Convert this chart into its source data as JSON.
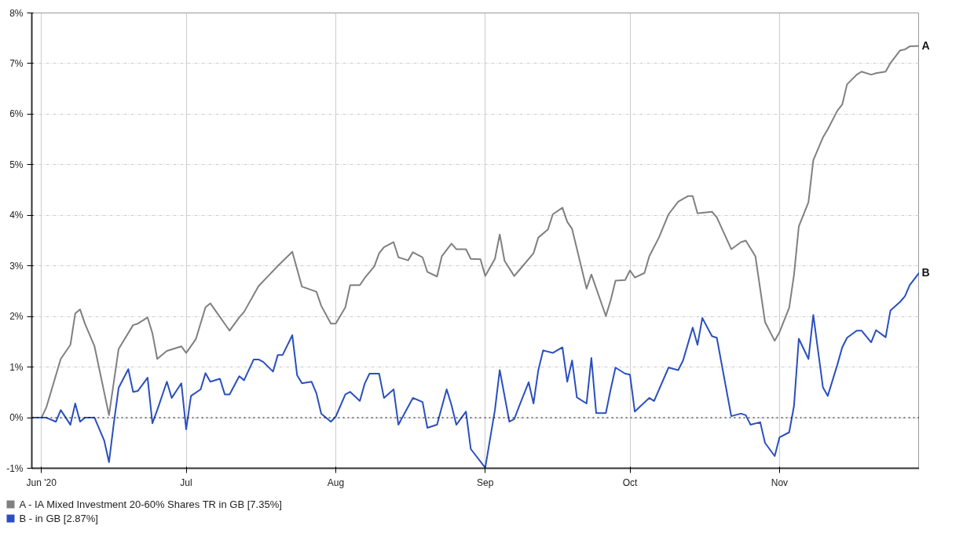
{
  "chart_data": {
    "type": "line",
    "xlim": [
      "2020-05-30",
      "2020-11-30"
    ],
    "xticks": [
      {
        "value": "2020-06-01",
        "label": "Jun '20"
      },
      {
        "value": "2020-07-01",
        "label": "Jul"
      },
      {
        "value": "2020-08-01",
        "label": "Aug"
      },
      {
        "value": "2020-09-01",
        "label": "Sep"
      },
      {
        "value": "2020-10-01",
        "label": "Oct"
      },
      {
        "value": "2020-11-01",
        "label": "Nov"
      }
    ],
    "ylim": [
      -1,
      8
    ],
    "yticks": [
      {
        "value": -1,
        "label": "-1%"
      },
      {
        "value": 0,
        "label": "0%"
      },
      {
        "value": 1,
        "label": "1%"
      },
      {
        "value": 2,
        "label": "2%"
      },
      {
        "value": 3,
        "label": "3%"
      },
      {
        "value": 4,
        "label": "4%"
      },
      {
        "value": 5,
        "label": "5%"
      },
      {
        "value": 6,
        "label": "6%"
      },
      {
        "value": 7,
        "label": "7%"
      },
      {
        "value": 8,
        "label": "8%"
      }
    ],
    "grid": true,
    "legend": "bottom",
    "marker": "none",
    "line_style": "solid",
    "ref_lines": [
      {
        "axis": "y",
        "value": 0,
        "color": "#000000",
        "line_style": "dotted"
      }
    ],
    "annotations": [
      {
        "text": "A",
        "x": "2020-11-30",
        "y": 7.35
      },
      {
        "text": "B",
        "x": "2020-11-30",
        "y": 2.87
      }
    ],
    "series": [
      {
        "name": "A - IA Mixed Investment 20-60% Shares TR in GB [7.35%]",
        "color": "#808080",
        "x": [
          "2020-05-30",
          "2020-06-01",
          "2020-06-02",
          "2020-06-05",
          "2020-06-07",
          "2020-06-08",
          "2020-06-09",
          "2020-06-10",
          "2020-06-12",
          "2020-06-15",
          "2020-06-17",
          "2020-06-20",
          "2020-06-21",
          "2020-06-23",
          "2020-06-24",
          "2020-06-25",
          "2020-06-27",
          "2020-06-30",
          "2020-07-01",
          "2020-07-03",
          "2020-07-05",
          "2020-07-06",
          "2020-07-10",
          "2020-07-12",
          "2020-07-13",
          "2020-07-16",
          "2020-07-18",
          "2020-07-20",
          "2020-07-23",
          "2020-07-25",
          "2020-07-28",
          "2020-07-29",
          "2020-07-31",
          "2020-08-01",
          "2020-08-03",
          "2020-08-04",
          "2020-08-06",
          "2020-08-07",
          "2020-08-09",
          "2020-08-10",
          "2020-08-11",
          "2020-08-13",
          "2020-08-14",
          "2020-08-16",
          "2020-08-17",
          "2020-08-19",
          "2020-08-20",
          "2020-08-22",
          "2020-08-23",
          "2020-08-25",
          "2020-08-26",
          "2020-08-28",
          "2020-08-29",
          "2020-08-31",
          "2020-09-01",
          "2020-09-03",
          "2020-09-04",
          "2020-09-05",
          "2020-09-07",
          "2020-09-08",
          "2020-09-11",
          "2020-09-12",
          "2020-09-14",
          "2020-09-15",
          "2020-09-17",
          "2020-09-18",
          "2020-09-19",
          "2020-09-22",
          "2020-09-23",
          "2020-09-26",
          "2020-09-27",
          "2020-09-28",
          "2020-09-30",
          "2020-10-01",
          "2020-10-02",
          "2020-10-04",
          "2020-10-05",
          "2020-10-07",
          "2020-10-09",
          "2020-10-11",
          "2020-10-13",
          "2020-10-14",
          "2020-10-15",
          "2020-10-18",
          "2020-10-19",
          "2020-10-22",
          "2020-10-24",
          "2020-10-25",
          "2020-10-27",
          "2020-10-29",
          "2020-10-31",
          "2020-11-01",
          "2020-11-03",
          "2020-11-04",
          "2020-11-05",
          "2020-11-07",
          "2020-11-08",
          "2020-11-10",
          "2020-11-11",
          "2020-11-13",
          "2020-11-14",
          "2020-11-15",
          "2020-11-17",
          "2020-11-18",
          "2020-11-20",
          "2020-11-21",
          "2020-11-23",
          "2020-11-24",
          "2020-11-26",
          "2020-11-27",
          "2020-11-28",
          "2020-11-30"
        ],
        "values": [
          0,
          0,
          0.2,
          1.16,
          1.44,
          2.06,
          2.14,
          1.86,
          1.41,
          0.05,
          1.36,
          1.83,
          1.86,
          1.98,
          1.67,
          1.16,
          1.32,
          1.41,
          1.28,
          1.55,
          2.18,
          2.26,
          1.72,
          1.98,
          2.09,
          2.6,
          2.8,
          3.0,
          3.28,
          2.59,
          2.49,
          2.21,
          1.86,
          1.86,
          2.18,
          2.62,
          2.62,
          2.76,
          2.99,
          3.25,
          3.37,
          3.47,
          3.17,
          3.11,
          3.27,
          3.17,
          2.88,
          2.79,
          3.19,
          3.44,
          3.33,
          3.33,
          3.14,
          3.13,
          2.8,
          3.14,
          3.62,
          3.1,
          2.8,
          2.91,
          3.25,
          3.56,
          3.72,
          4.02,
          4.15,
          3.87,
          3.73,
          2.55,
          2.83,
          2.01,
          2.32,
          2.71,
          2.72,
          2.91,
          2.77,
          2.86,
          3.19,
          3.56,
          4.02,
          4.27,
          4.38,
          4.38,
          4.04,
          4.07,
          3.96,
          3.33,
          3.47,
          3.5,
          3.19,
          1.89,
          1.52,
          1.69,
          2.17,
          2.82,
          3.78,
          4.26,
          5.09,
          5.54,
          5.7,
          6.07,
          6.19,
          6.59,
          6.78,
          6.84,
          6.78,
          6.81,
          6.84,
          7.01,
          7.26,
          7.28,
          7.34,
          7.35
        ]
      },
      {
        "name": "B - in GB [2.87%]",
        "color": "#2a4fbf",
        "x": [
          "2020-05-30",
          "2020-06-02",
          "2020-06-04",
          "2020-06-05",
          "2020-06-07",
          "2020-06-08",
          "2020-06-09",
          "2020-06-10",
          "2020-06-12",
          "2020-06-14",
          "2020-06-15",
          "2020-06-16",
          "2020-06-17",
          "2020-06-19",
          "2020-06-20",
          "2020-06-21",
          "2020-06-23",
          "2020-06-24",
          "2020-06-25",
          "2020-06-27",
          "2020-06-28",
          "2020-06-30",
          "2020-07-01",
          "2020-07-02",
          "2020-07-04",
          "2020-07-05",
          "2020-07-06",
          "2020-07-08",
          "2020-07-09",
          "2020-07-10",
          "2020-07-12",
          "2020-07-13",
          "2020-07-15",
          "2020-07-16",
          "2020-07-17",
          "2020-07-19",
          "2020-07-20",
          "2020-07-21",
          "2020-07-23",
          "2020-07-24",
          "2020-07-25",
          "2020-07-27",
          "2020-07-28",
          "2020-07-29",
          "2020-07-31",
          "2020-08-01",
          "2020-08-03",
          "2020-08-04",
          "2020-08-06",
          "2020-08-07",
          "2020-08-08",
          "2020-08-10",
          "2020-08-11",
          "2020-08-13",
          "2020-08-14",
          "2020-08-17",
          "2020-08-19",
          "2020-08-20",
          "2020-08-22",
          "2020-08-24",
          "2020-08-25",
          "2020-08-26",
          "2020-08-28",
          "2020-08-29",
          "2020-09-01",
          "2020-09-03",
          "2020-09-04",
          "2020-09-06",
          "2020-09-07",
          "2020-09-08",
          "2020-09-10",
          "2020-09-11",
          "2020-09-12",
          "2020-09-13",
          "2020-09-15",
          "2020-09-17",
          "2020-09-18",
          "2020-09-19",
          "2020-09-20",
          "2020-09-22",
          "2020-09-23",
          "2020-09-24",
          "2020-09-26",
          "2020-09-27",
          "2020-09-28",
          "2020-09-30",
          "2020-10-01",
          "2020-10-02",
          "2020-10-05",
          "2020-10-06",
          "2020-10-09",
          "2020-10-11",
          "2020-10-12",
          "2020-10-14",
          "2020-10-15",
          "2020-10-16",
          "2020-10-18",
          "2020-10-19",
          "2020-10-22",
          "2020-10-24",
          "2020-10-25",
          "2020-10-26",
          "2020-10-28",
          "2020-10-29",
          "2020-10-31",
          "2020-11-01",
          "2020-11-03",
          "2020-11-04",
          "2020-11-05",
          "2020-11-07",
          "2020-11-08",
          "2020-11-10",
          "2020-11-11",
          "2020-11-13",
          "2020-11-14",
          "2020-11-15",
          "2020-11-17",
          "2020-11-18",
          "2020-11-20",
          "2020-11-21",
          "2020-11-23",
          "2020-11-24",
          "2020-11-26",
          "2020-11-27",
          "2020-11-28",
          "2020-11-30"
        ],
        "values": [
          0,
          0,
          -0.08,
          0.15,
          -0.14,
          0.28,
          -0.08,
          0,
          0,
          -0.45,
          -0.88,
          -0.11,
          0.59,
          0.96,
          0.51,
          0.53,
          0.79,
          -0.11,
          0.15,
          0.71,
          0.39,
          0.68,
          -0.23,
          0.43,
          0.56,
          0.88,
          0.71,
          0.77,
          0.46,
          0.46,
          0.82,
          0.74,
          1.15,
          1.15,
          1.1,
          0.91,
          1.24,
          1.24,
          1.63,
          0.84,
          0.68,
          0.71,
          0.48,
          0.08,
          -0.08,
          0.02,
          0.46,
          0.51,
          0.33,
          0.67,
          0.87,
          0.87,
          0.39,
          0.56,
          -0.14,
          0.39,
          0.31,
          -0.2,
          -0.14,
          0.56,
          0.25,
          -0.14,
          0.12,
          -0.62,
          -0.99,
          0.15,
          0.94,
          -0.08,
          -0.03,
          0.22,
          0.7,
          0.28,
          0.94,
          1.33,
          1.28,
          1.39,
          0.71,
          1.13,
          0.4,
          0.28,
          1.18,
          0.09,
          0.09,
          0.56,
          0.99,
          0.87,
          0.85,
          0.12,
          0.39,
          0.33,
          0.99,
          0.94,
          1.13,
          1.78,
          1.44,
          1.97,
          1.61,
          1.58,
          0.03,
          0.08,
          0.05,
          -0.14,
          -0.09,
          -0.5,
          -0.76,
          -0.39,
          -0.29,
          0.23,
          1.56,
          1.16,
          2.03,
          0.6,
          0.43,
          1.05,
          1.39,
          1.58,
          1.72,
          1.72,
          1.49,
          1.73,
          1.59,
          2.12,
          2.29,
          2.4,
          2.62,
          2.87
        ]
      }
    ]
  }
}
